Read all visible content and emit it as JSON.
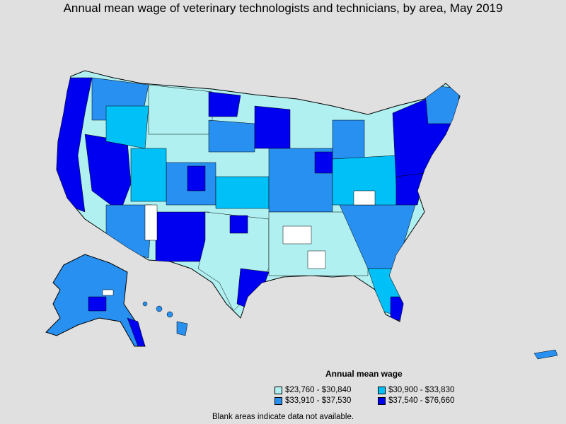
{
  "title": "Annual mean wage of veterinary technologists and technicians, by area, May 2019",
  "legend": {
    "title": "Annual mean wage",
    "items": [
      {
        "label": "$23,760 - $30,840",
        "color": "#b0f0f0"
      },
      {
        "label": "$30,900 - $33,830",
        "color": "#00c0f8"
      },
      {
        "label": "$33,910 - $37,530",
        "color": "#2890f0"
      },
      {
        "label": "$37,540 - $76,660",
        "color": "#0000f0"
      }
    ]
  },
  "note": "Blank areas indicate data not available."
}
